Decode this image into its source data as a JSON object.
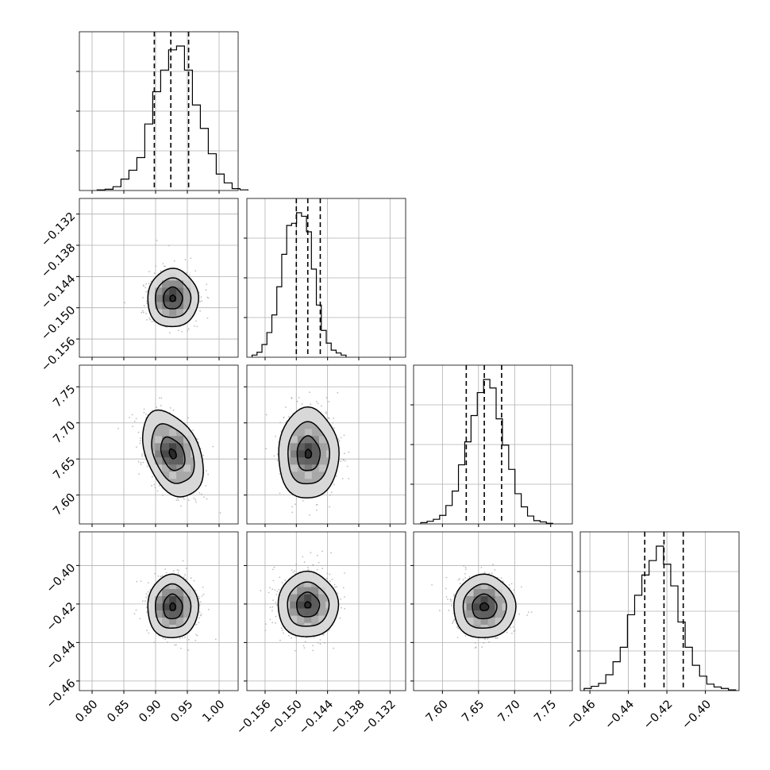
{
  "chart_data": {
    "type": "corner",
    "description_of_panels": "lower-triangle 2D density contours with 1D marginal histograms on the diagonal",
    "quantile_lines": "dashed vertical lines at 16th, 50th, 84th percentiles",
    "grid": true,
    "colors": {
      "line": "#000000",
      "grid": "#b0b0b0",
      "scatter": "#a8a8a8"
    },
    "params": [
      {
        "range": [
          0.78,
          1.03
        ],
        "ticks": [
          0.8,
          0.85,
          0.9,
          0.95,
          1.0
        ],
        "tick_labels": [
          "0.80",
          "0.85",
          "0.90",
          "0.95",
          "1.00"
        ],
        "quantiles": [
          0.898,
          0.924,
          0.952
        ],
        "hist": {
          "start": 0.808,
          "width": 0.0125,
          "counts": [
            1,
            2,
            6,
            18,
            32,
            52,
            105,
            156,
            190,
            222,
            228,
            190,
            135,
            98,
            58,
            26,
            12,
            3,
            1
          ]
        }
      },
      {
        "range": [
          -0.1595,
          -0.129
        ],
        "ticks": [
          -0.156,
          -0.15,
          -0.144,
          -0.138,
          -0.132
        ],
        "tick_labels": [
          "−0.156",
          "−0.150",
          "−0.144",
          "−0.138",
          "−0.132"
        ],
        "quantiles": [
          -0.15,
          -0.1478,
          -0.1454
        ],
        "hist": {
          "start": -0.1585,
          "width": 0.00095,
          "counts": [
            3,
            7,
            18,
            35,
            60,
            100,
            146,
            187,
            190,
            205,
            200,
            178,
            125,
            74,
            38,
            20,
            10,
            6,
            3
          ]
        }
      },
      {
        "range": [
          7.56,
          7.78
        ],
        "ticks": [
          7.6,
          7.65,
          7.7,
          7.75
        ],
        "tick_labels": [
          "7.60",
          "7.65",
          "7.70",
          "7.75"
        ],
        "quantiles": [
          7.633,
          7.658,
          7.682
        ],
        "hist": {
          "start": 7.57,
          "width": 0.0087,
          "counts": [
            2,
            4,
            7,
            13,
            28,
            50,
            90,
            125,
            165,
            200,
            220,
            207,
            160,
            120,
            83,
            46,
            26,
            12,
            5,
            3,
            1
          ]
        }
      },
      {
        "range": [
          -0.465,
          -0.3825
        ],
        "ticks": [
          -0.46,
          -0.44,
          -0.42,
          -0.4
        ],
        "tick_labels": [
          "−0.46",
          "−0.44",
          "−0.42",
          "−0.40"
        ],
        "quantiles": [
          -0.4315,
          -0.4215,
          -0.4115
        ],
        "hist": {
          "start": -0.463,
          "width": 0.00375,
          "counts": [
            3,
            6,
            10,
            22,
            40,
            60,
            105,
            132,
            160,
            180,
            200,
            175,
            145,
            95,
            60,
            35,
            20,
            9,
            5,
            3,
            1
          ]
        }
      }
    ],
    "contours": {
      "1-0": {
        "center": [
          0.927,
          -0.1482
        ],
        "levels": [
          [
            0.04,
            0.0056
          ],
          [
            0.028,
            0.0038
          ],
          [
            0.015,
            0.0021
          ],
          [
            0.0045,
            0.0006
          ]
        ],
        "corr": 0.05
      },
      "2-0": {
        "center": [
          0.927,
          7.657
        ],
        "levels": [
          [
            0.042,
            0.063
          ],
          [
            0.03,
            0.043
          ],
          [
            0.017,
            0.024
          ],
          [
            0.005,
            0.007
          ]
        ],
        "corr": -0.45
      },
      "2-1": {
        "center": [
          -0.1477,
          7.657
        ],
        "levels": [
          [
            0.0058,
            0.063
          ],
          [
            0.004,
            0.043
          ],
          [
            0.0022,
            0.024
          ],
          [
            0.0006,
            0.006
          ]
        ],
        "corr": 0.0
      },
      "3-0": {
        "center": [
          0.927,
          -0.4215
        ],
        "levels": [
          [
            0.04,
            0.0165
          ],
          [
            0.028,
            0.0115
          ],
          [
            0.015,
            0.0064
          ],
          [
            0.0045,
            0.002
          ]
        ],
        "corr": 0.0
      },
      "3-1": {
        "center": [
          -0.1478,
          -0.4205
        ],
        "levels": [
          [
            0.0058,
            0.017
          ],
          [
            0.004,
            0.0115
          ],
          [
            0.0022,
            0.0064
          ],
          [
            0.0006,
            0.0016
          ]
        ],
        "corr": 0.0
      },
      "3-2": {
        "center": [
          7.658,
          -0.4215
        ],
        "levels": [
          [
            0.043,
            0.0165
          ],
          [
            0.03,
            0.0115
          ],
          [
            0.017,
            0.0064
          ],
          [
            0.006,
            0.002
          ]
        ],
        "corr": 0.0
      }
    }
  }
}
